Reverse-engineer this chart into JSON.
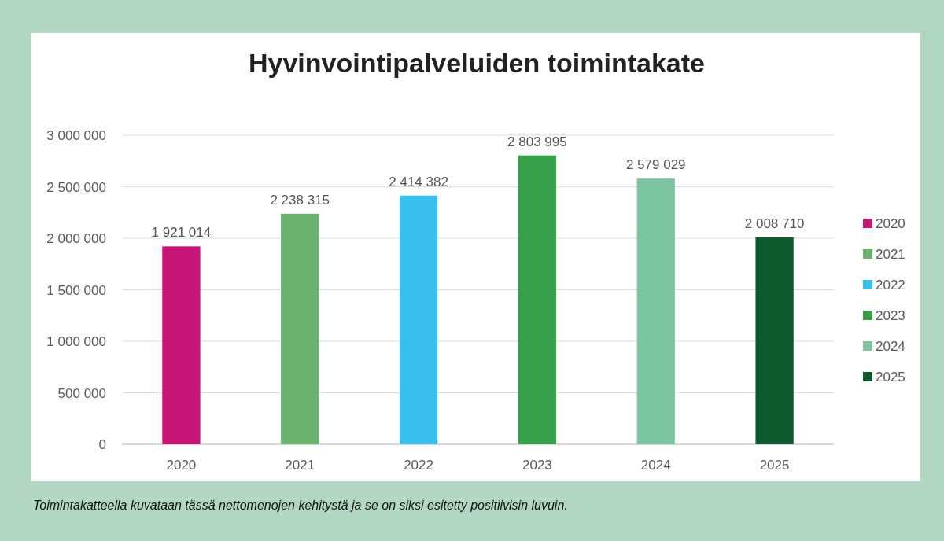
{
  "chart_data": {
    "type": "bar",
    "title": "Hyvinvointipalveluiden toimintakate",
    "categories": [
      "2020",
      "2021",
      "2022",
      "2023",
      "2024",
      "2025"
    ],
    "series": [
      {
        "name": "2020",
        "color": "#c71577",
        "values": [
          1921014,
          null,
          null,
          null,
          null,
          null
        ],
        "value_labels": [
          "1 921 014",
          null,
          null,
          null,
          null,
          null
        ]
      },
      {
        "name": "2021",
        "color": "#6ab26e",
        "values": [
          null,
          2238315,
          null,
          null,
          null,
          null
        ],
        "value_labels": [
          null,
          "2 238 315",
          null,
          null,
          null,
          null
        ]
      },
      {
        "name": "2022",
        "color": "#38bfee",
        "values": [
          null,
          null,
          2414382,
          null,
          null,
          null
        ],
        "value_labels": [
          null,
          null,
          "2 414 382",
          null,
          null,
          null
        ]
      },
      {
        "name": "2023",
        "color": "#36a04a",
        "values": [
          null,
          null,
          null,
          2803995,
          null,
          null
        ],
        "value_labels": [
          null,
          null,
          null,
          "2 803 995",
          null,
          null
        ]
      },
      {
        "name": "2024",
        "color": "#7dc4a0",
        "values": [
          null,
          null,
          null,
          null,
          2579029,
          null
        ],
        "value_labels": [
          null,
          null,
          null,
          null,
          "2 579 029",
          null
        ]
      },
      {
        "name": "2025",
        "color": "#0e5a2f",
        "values": [
          null,
          null,
          null,
          null,
          null,
          2008710
        ],
        "value_labels": [
          null,
          null,
          null,
          null,
          null,
          "2 008 710"
        ]
      }
    ],
    "ylim": [
      0,
      3000000
    ],
    "yticks": [
      0,
      {
        "value": 500000,
        "label": "500 000"
      },
      {
        "value": 1000000,
        "label": "1 000 000"
      },
      {
        "value": 1500000,
        "label": "1 500 000"
      },
      {
        "value": 2000000,
        "label": "2 000 000"
      },
      {
        "value": 2500000,
        "label": "2 500 000"
      },
      {
        "value": 3000000,
        "label": "3 000 000"
      }
    ],
    "grid": "y",
    "legend": "right",
    "annotations": [
      "Toimintakatteella kuvataan tässä nettomenojen kehitystä ja se on siksi esitetty positiivisin luvuin."
    ]
  }
}
